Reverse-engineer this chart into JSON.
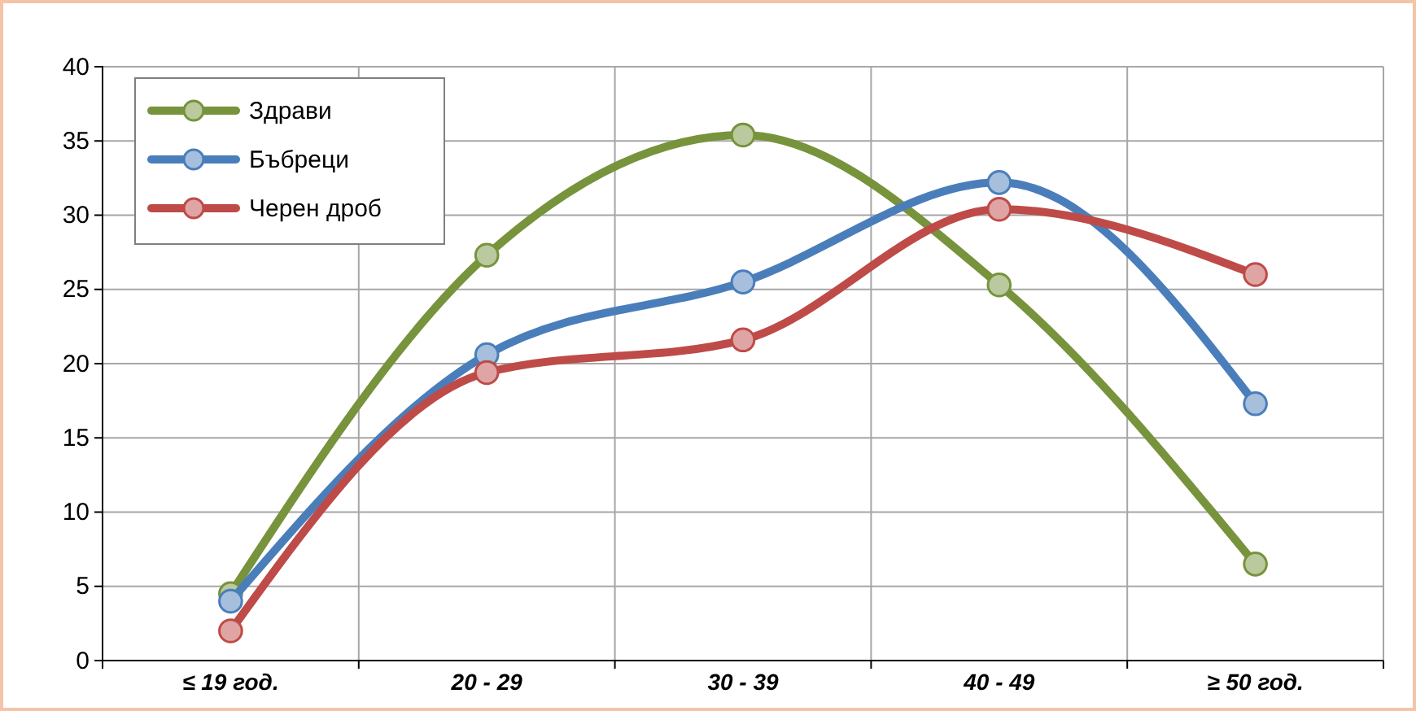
{
  "chart_data": {
    "type": "line",
    "categories": [
      "≤ 19 год.",
      "20 - 29",
      "30 - 39",
      "40 - 49",
      "≥ 50 год."
    ],
    "series": [
      {
        "name": "Здрави",
        "color": "#77933c",
        "values": [
          4.5,
          27.3,
          35.4,
          25.3,
          6.5
        ]
      },
      {
        "name": "Бъбреци",
        "color": "#4a7ebb",
        "values": [
          4,
          20.6,
          25.5,
          32.2,
          17.3
        ]
      },
      {
        "name": "Черен дроб",
        "color": "#be4b48",
        "values": [
          2,
          19.4,
          21.6,
          30.4,
          26
        ]
      }
    ],
    "ylim": [
      0,
      40
    ],
    "yticks": [
      0,
      5,
      10,
      15,
      20,
      25,
      30,
      35,
      40
    ],
    "grid": true,
    "legend": "top left",
    "marker": "circle",
    "line_style": "solid"
  }
}
